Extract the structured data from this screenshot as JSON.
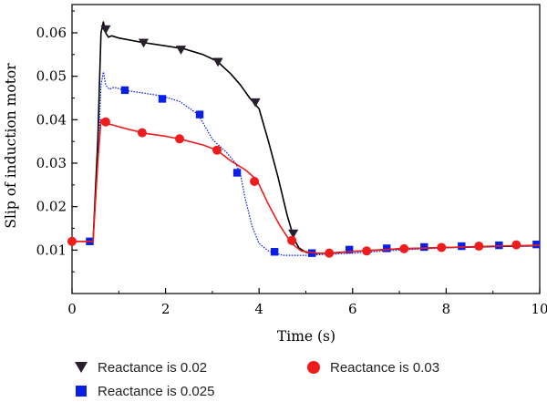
{
  "chart_data": {
    "type": "line",
    "xlabel": "Time (s)",
    "ylabel": "Slip of induction motor",
    "xlim": [
      0,
      10
    ],
    "ylim": [
      0,
      0.0665
    ],
    "xticks": [
      0,
      2,
      4,
      6,
      8,
      10
    ],
    "yticks": [
      0.01,
      0.02,
      0.03,
      0.04,
      0.05,
      0.06
    ],
    "grid": false,
    "legend_position": "bottom",
    "series": [
      {
        "name": "Reactance is 0.02",
        "color": "#000000",
        "marker": "triangle-down",
        "line": [
          [
            0,
            0.012
          ],
          [
            0.3,
            0.012
          ],
          [
            0.45,
            0.012
          ],
          [
            0.55,
            0.035
          ],
          [
            0.62,
            0.06
          ],
          [
            0.67,
            0.0625
          ],
          [
            0.72,
            0.06
          ],
          [
            0.78,
            0.059
          ],
          [
            0.85,
            0.0593
          ],
          [
            1.0,
            0.0588
          ],
          [
            1.5,
            0.0578
          ],
          [
            2.0,
            0.057
          ],
          [
            2.4,
            0.0563
          ],
          [
            2.8,
            0.055
          ],
          [
            3.1,
            0.0535
          ],
          [
            3.4,
            0.0505
          ],
          [
            3.6,
            0.048
          ],
          [
            3.8,
            0.045
          ],
          [
            4.0,
            0.0425
          ],
          [
            4.2,
            0.035
          ],
          [
            4.4,
            0.027
          ],
          [
            4.6,
            0.018
          ],
          [
            4.75,
            0.0125
          ],
          [
            4.85,
            0.0105
          ],
          [
            5.0,
            0.0095
          ],
          [
            5.2,
            0.0092
          ],
          [
            5.5,
            0.0093
          ],
          [
            6.0,
            0.0097
          ],
          [
            7.0,
            0.0103
          ],
          [
            8.0,
            0.0106
          ],
          [
            9.0,
            0.0108
          ],
          [
            10.0,
            0.011
          ]
        ],
        "markers": [
          [
            0.72,
            0.0608
          ],
          [
            1.53,
            0.0577
          ],
          [
            2.33,
            0.0561
          ],
          [
            3.12,
            0.0533
          ],
          [
            3.92,
            0.044
          ],
          [
            4.73,
            0.0138
          ]
        ]
      },
      {
        "name": "Reactance is 0.025",
        "color": "#0a1fe6",
        "marker": "square",
        "line": [
          [
            0,
            0.012
          ],
          [
            0.3,
            0.012
          ],
          [
            0.45,
            0.012
          ],
          [
            0.55,
            0.03
          ],
          [
            0.62,
            0.048
          ],
          [
            0.67,
            0.051
          ],
          [
            0.72,
            0.048
          ],
          [
            0.8,
            0.047
          ],
          [
            0.9,
            0.0475
          ],
          [
            1.1,
            0.0468
          ],
          [
            1.5,
            0.0462
          ],
          [
            1.9,
            0.0455
          ],
          [
            2.3,
            0.0442
          ],
          [
            2.7,
            0.0412
          ],
          [
            3.0,
            0.0355
          ],
          [
            3.3,
            0.0325
          ],
          [
            3.5,
            0.03
          ],
          [
            3.6,
            0.0275
          ],
          [
            3.7,
            0.022
          ],
          [
            3.85,
            0.0155
          ],
          [
            4.0,
            0.0115
          ],
          [
            4.2,
            0.0098
          ],
          [
            4.5,
            0.0088
          ],
          [
            5.0,
            0.0088
          ],
          [
            6.0,
            0.0093
          ],
          [
            7.0,
            0.01
          ],
          [
            8.0,
            0.0105
          ],
          [
            9.0,
            0.0108
          ],
          [
            10.0,
            0.011
          ]
        ],
        "markers": [
          [
            0.38,
            0.012
          ],
          [
            1.13,
            0.0468
          ],
          [
            1.93,
            0.0448
          ],
          [
            2.73,
            0.0412
          ],
          [
            3.53,
            0.0278
          ],
          [
            4.33,
            0.0096
          ],
          [
            5.13,
            0.0093
          ],
          [
            5.93,
            0.0101
          ],
          [
            6.73,
            0.0104
          ],
          [
            7.53,
            0.0107
          ],
          [
            8.33,
            0.0109
          ],
          [
            9.13,
            0.0111
          ],
          [
            9.93,
            0.0113
          ]
        ]
      },
      {
        "name": "Reactance is 0.03",
        "color": "#ee1c1c",
        "marker": "circle",
        "line": [
          [
            0,
            0.012
          ],
          [
            0.3,
            0.012
          ],
          [
            0.45,
            0.012
          ],
          [
            0.55,
            0.03
          ],
          [
            0.62,
            0.04
          ],
          [
            0.68,
            0.0398
          ],
          [
            0.8,
            0.039
          ],
          [
            1.2,
            0.0378
          ],
          [
            1.6,
            0.0368
          ],
          [
            2.0,
            0.0362
          ],
          [
            2.4,
            0.0353
          ],
          [
            2.8,
            0.0342
          ],
          [
            3.1,
            0.033
          ],
          [
            3.4,
            0.0305
          ],
          [
            3.7,
            0.0285
          ],
          [
            3.95,
            0.0262
          ],
          [
            4.2,
            0.0205
          ],
          [
            4.45,
            0.0155
          ],
          [
            4.7,
            0.0115
          ],
          [
            4.9,
            0.0098
          ],
          [
            5.2,
            0.0093
          ],
          [
            5.6,
            0.0093
          ],
          [
            6.0,
            0.0097
          ],
          [
            7.0,
            0.0103
          ],
          [
            8.0,
            0.0106
          ],
          [
            9.0,
            0.0109
          ],
          [
            10.0,
            0.0111
          ]
        ],
        "markers": [
          [
            0,
            0.012
          ],
          [
            0.72,
            0.0395
          ],
          [
            1.5,
            0.037
          ],
          [
            2.3,
            0.0356
          ],
          [
            3.1,
            0.033
          ],
          [
            3.9,
            0.0258
          ],
          [
            4.7,
            0.0122
          ],
          [
            5.5,
            0.0093
          ],
          [
            6.3,
            0.0098
          ],
          [
            7.1,
            0.0103
          ],
          [
            7.9,
            0.0106
          ],
          [
            8.7,
            0.0109
          ],
          [
            9.5,
            0.0112
          ]
        ]
      }
    ]
  }
}
